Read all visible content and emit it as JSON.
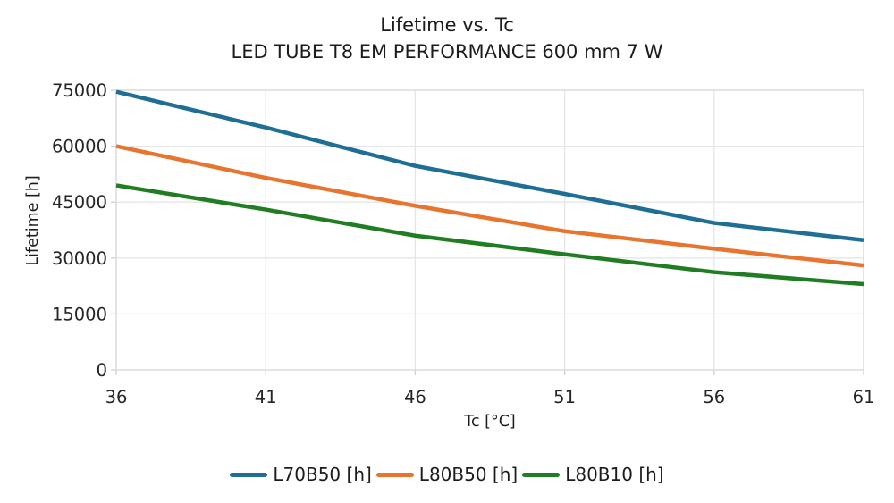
{
  "title": "Lifetime vs. Tc",
  "subtitle": "LED TUBE T8 EM PERFORMANCE 600 mm 7 W",
  "chart_data": {
    "type": "line",
    "title": "Lifetime vs. Tc",
    "subtitle": "LED TUBE T8 EM PERFORMANCE 600 mm 7 W",
    "xlabel": "Tc [°C]",
    "ylabel": "Lifetime [h]",
    "x": [
      36,
      41,
      46,
      51,
      56,
      61
    ],
    "series": [
      {
        "name": "L70B50 [h]",
        "color": "#1f6e96",
        "values": [
          74600,
          65000,
          54700,
          47200,
          39400,
          34800
        ]
      },
      {
        "name": "L80B50 [h]",
        "color": "#e8742d",
        "values": [
          60000,
          51500,
          44000,
          37200,
          32500,
          28000
        ]
      },
      {
        "name": "L80B10 [h]",
        "color": "#217d21",
        "values": [
          49500,
          43000,
          36000,
          31000,
          26200,
          23000
        ]
      }
    ],
    "xlim": [
      36,
      61
    ],
    "ylim": [
      0,
      75000
    ],
    "xticks": [
      36,
      41,
      46,
      51,
      56,
      61
    ],
    "yticks": [
      0,
      15000,
      30000,
      45000,
      60000,
      75000
    ],
    "grid": true,
    "legend_position": "bottom center"
  },
  "colors": {
    "grid": "#e6e6e6",
    "frame": "#d9d9d9",
    "tick": "#cfcfcf",
    "text": "#1c1c1c",
    "background": "#ffffff"
  }
}
